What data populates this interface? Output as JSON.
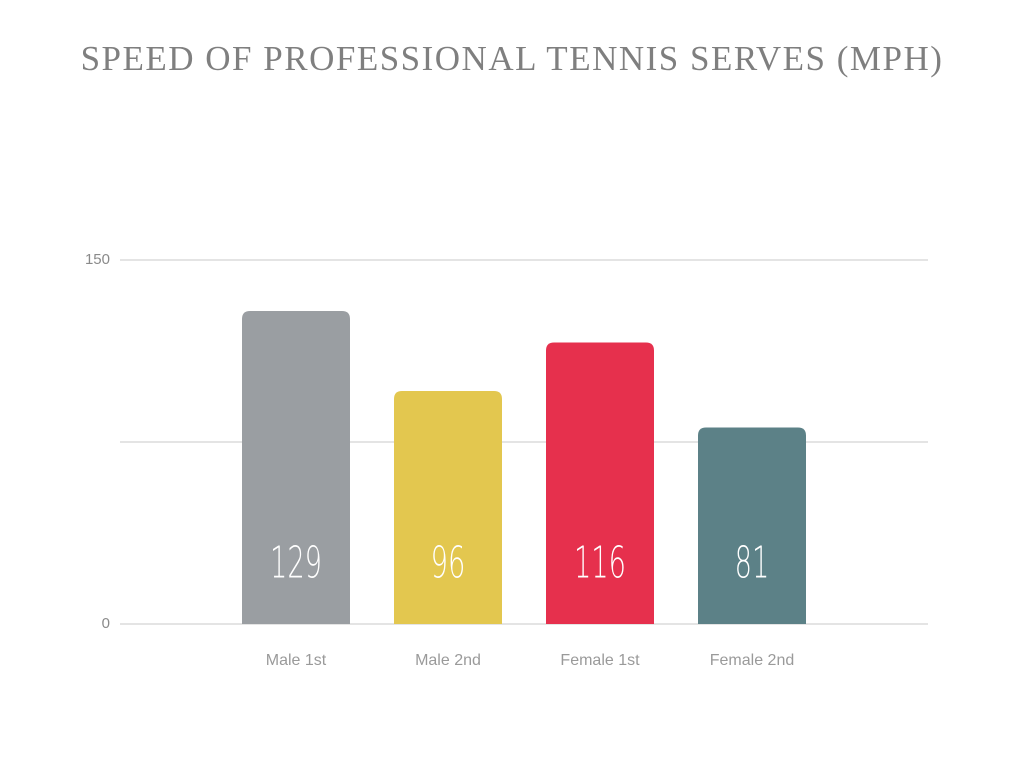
{
  "chart_data": {
    "type": "bar",
    "title": "SPEED OF PROFESSIONAL TENNIS SERVES (MPH)",
    "categories": [
      "Male 1st",
      "Male 2nd",
      "Female 1st",
      "Female 2nd"
    ],
    "values": [
      129,
      96,
      116,
      81
    ],
    "colors": [
      "#9a9ea2",
      "#e3c74f",
      "#e6304d",
      "#5c8187"
    ],
    "ylim": [
      0,
      150
    ],
    "yticks": [
      0,
      150
    ],
    "gridlines": [
      0,
      75,
      150
    ]
  }
}
